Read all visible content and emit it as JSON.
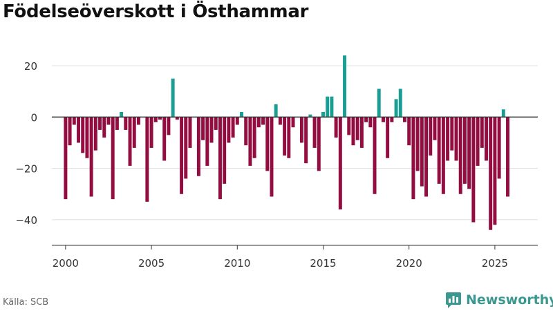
{
  "chart_data": {
    "type": "bar",
    "title": "Födelseöverskott i Östhammar",
    "xlabel": "",
    "ylabel": "",
    "xlim": [
      1999.2,
      2027.5
    ],
    "ylim": [
      -50,
      30
    ],
    "x_ticks": [
      2000,
      2005,
      2010,
      2015,
      2020,
      2025
    ],
    "x_tick_labels": [
      "2000",
      "2005",
      "2010",
      "2015",
      "2020",
      "2025"
    ],
    "y_ticks": [
      -40,
      -20,
      0,
      20
    ],
    "y_tick_labels": [
      "−40",
      "−20",
      "0",
      "20"
    ],
    "grid": true,
    "legend": "none",
    "colors": {
      "positive": "#1a9e94",
      "negative": "#930d41",
      "grid": "#dddddd",
      "zero_line": "#333333",
      "tick_text": "#333333"
    },
    "series": [
      {
        "name": "Födelseöverskott",
        "x_start": 2000.0,
        "x_step": 0.25,
        "values": [
          -32,
          -11,
          -3,
          -10,
          -14,
          -16,
          -31,
          -13,
          -5,
          -8,
          -3,
          -32,
          -5,
          2,
          -5,
          -19,
          -12,
          -3,
          0,
          -33,
          -12,
          -2,
          -1,
          -17,
          -7,
          15,
          -1,
          -30,
          -24,
          -12,
          0,
          -23,
          -9,
          -19,
          -10,
          -5,
          -32,
          -26,
          -10,
          -8,
          -3,
          2,
          -11,
          -19,
          -16,
          -4,
          -3,
          -21,
          -31,
          5,
          -3,
          -15,
          -16,
          -4,
          0,
          -10,
          -18,
          1,
          -12,
          -21,
          2,
          8,
          8,
          -8,
          -36,
          24,
          -7,
          -11,
          -9,
          -12,
          -2,
          -4,
          -30,
          11,
          -2,
          -16,
          -2,
          7,
          11,
          -2,
          -11,
          -32,
          -21,
          -27,
          -31,
          -15,
          -9,
          -26,
          -30,
          -17,
          -13,
          -17,
          -30,
          -26,
          -28,
          -41,
          -19,
          -12,
          -17,
          -44,
          -42,
          -24,
          3,
          -31
        ]
      }
    ]
  },
  "footer": {
    "source": "Källa: SCB",
    "brand": "Newsworthy",
    "brand_color": "#3a9890"
  }
}
